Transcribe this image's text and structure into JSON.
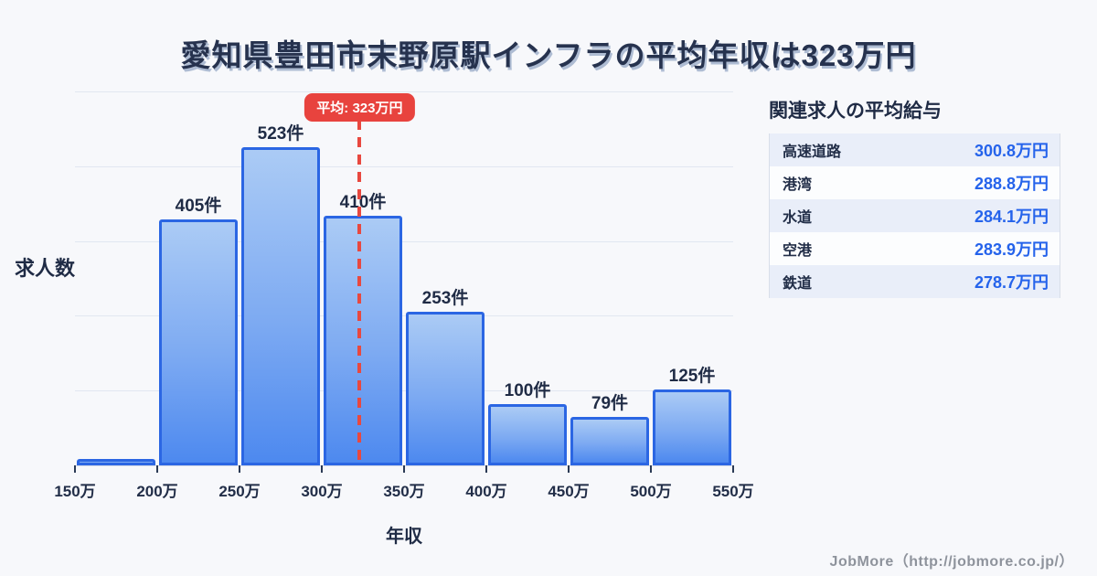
{
  "title": "愛知県豊田市末野原駅インフラの平均年収は323万円",
  "chart_data": {
    "type": "bar",
    "title": "愛知県豊田市末野原駅インフラの平均年収は323万円",
    "xlabel": "年収",
    "ylabel": "求人数",
    "categories": [
      "150万-200万",
      "200万-250万",
      "250万-300万",
      "300万-350万",
      "350万-400万",
      "400万-450万",
      "450万-500万",
      "500万-550万"
    ],
    "values": [
      9,
      405,
      523,
      410,
      253,
      100,
      79,
      125
    ],
    "bar_labels": [
      "",
      "405件",
      "523件",
      "410件",
      "253件",
      "100件",
      "79件",
      "125件"
    ],
    "x_tick_labels": [
      "150万",
      "200万",
      "250万",
      "300万",
      "350万",
      "400万",
      "450万",
      "500万",
      "550万"
    ],
    "x_range_man_yen": [
      150,
      550
    ],
    "ylim": [
      0,
      615
    ],
    "grid": true,
    "gridline_count": 5,
    "legend": null,
    "mean": {
      "label": "平均: 323万円",
      "value_man_yen": 323,
      "line_color": "#e8483f",
      "badge_color": "#e8433e"
    },
    "colors": {
      "bar_border": "#2b66e3",
      "bar_fill_top": "#abcbf5",
      "bar_fill_bottom": "#4d89ef"
    }
  },
  "side_panel": {
    "heading": "関連求人の平均給与",
    "rows": [
      {
        "label": "高速道路",
        "value": "300.8万円"
      },
      {
        "label": "港湾",
        "value": "288.8万円"
      },
      {
        "label": "水道",
        "value": "284.1万円"
      },
      {
        "label": "空港",
        "value": "283.9万円"
      },
      {
        "label": "鉄道",
        "value": "278.7万円"
      }
    ],
    "value_color": "#2563eb"
  },
  "footer": {
    "credit": "JobMore（http://jobmore.co.jp/）"
  }
}
